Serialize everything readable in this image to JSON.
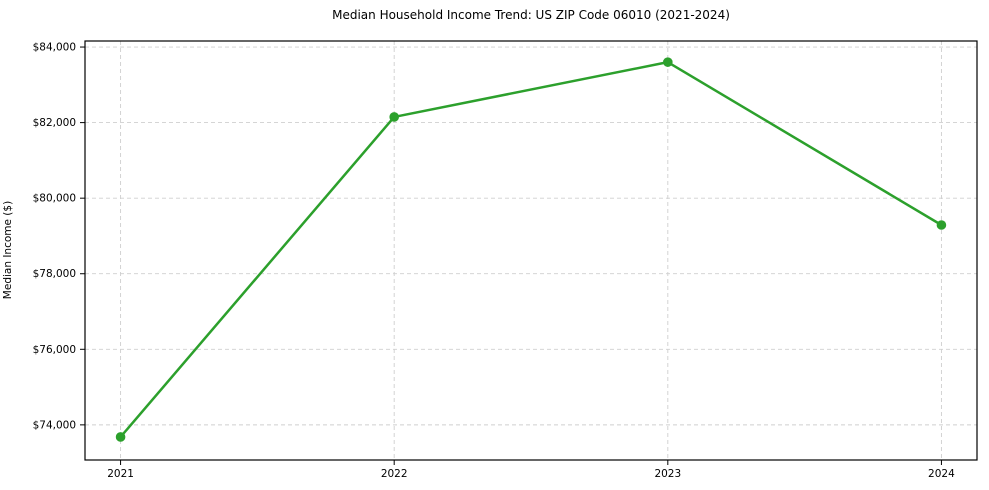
{
  "chart_data": {
    "type": "line",
    "title": "Median Household Income Trend: US ZIP Code 06010 (2021-2024)",
    "xlabel": "",
    "ylabel": "Median Income ($)",
    "x": [
      2021,
      2022,
      2023,
      2024
    ],
    "x_tick_labels": [
      "2021",
      "2022",
      "2023",
      "2024"
    ],
    "series": [
      {
        "name": "Median Household Income",
        "values": [
          73680,
          82150,
          83600,
          79290
        ]
      }
    ],
    "y_ticks": [
      74000,
      76000,
      78000,
      80000,
      82000,
      84000
    ],
    "y_tick_labels": [
      "$74,000",
      "$76,000",
      "$78,000",
      "$80,000",
      "$82,000",
      "$84,000"
    ],
    "xlim": [
      2020.87,
      2024.13
    ],
    "ylim": [
      73070,
      84160
    ],
    "grid": true,
    "grid_style": "dashed",
    "legend_position": "none",
    "line_color": "#2ca02c",
    "marker": "circle",
    "background_color": "#ffffff",
    "grid_color": "#cfcfcf",
    "spine_color": "#000000"
  }
}
